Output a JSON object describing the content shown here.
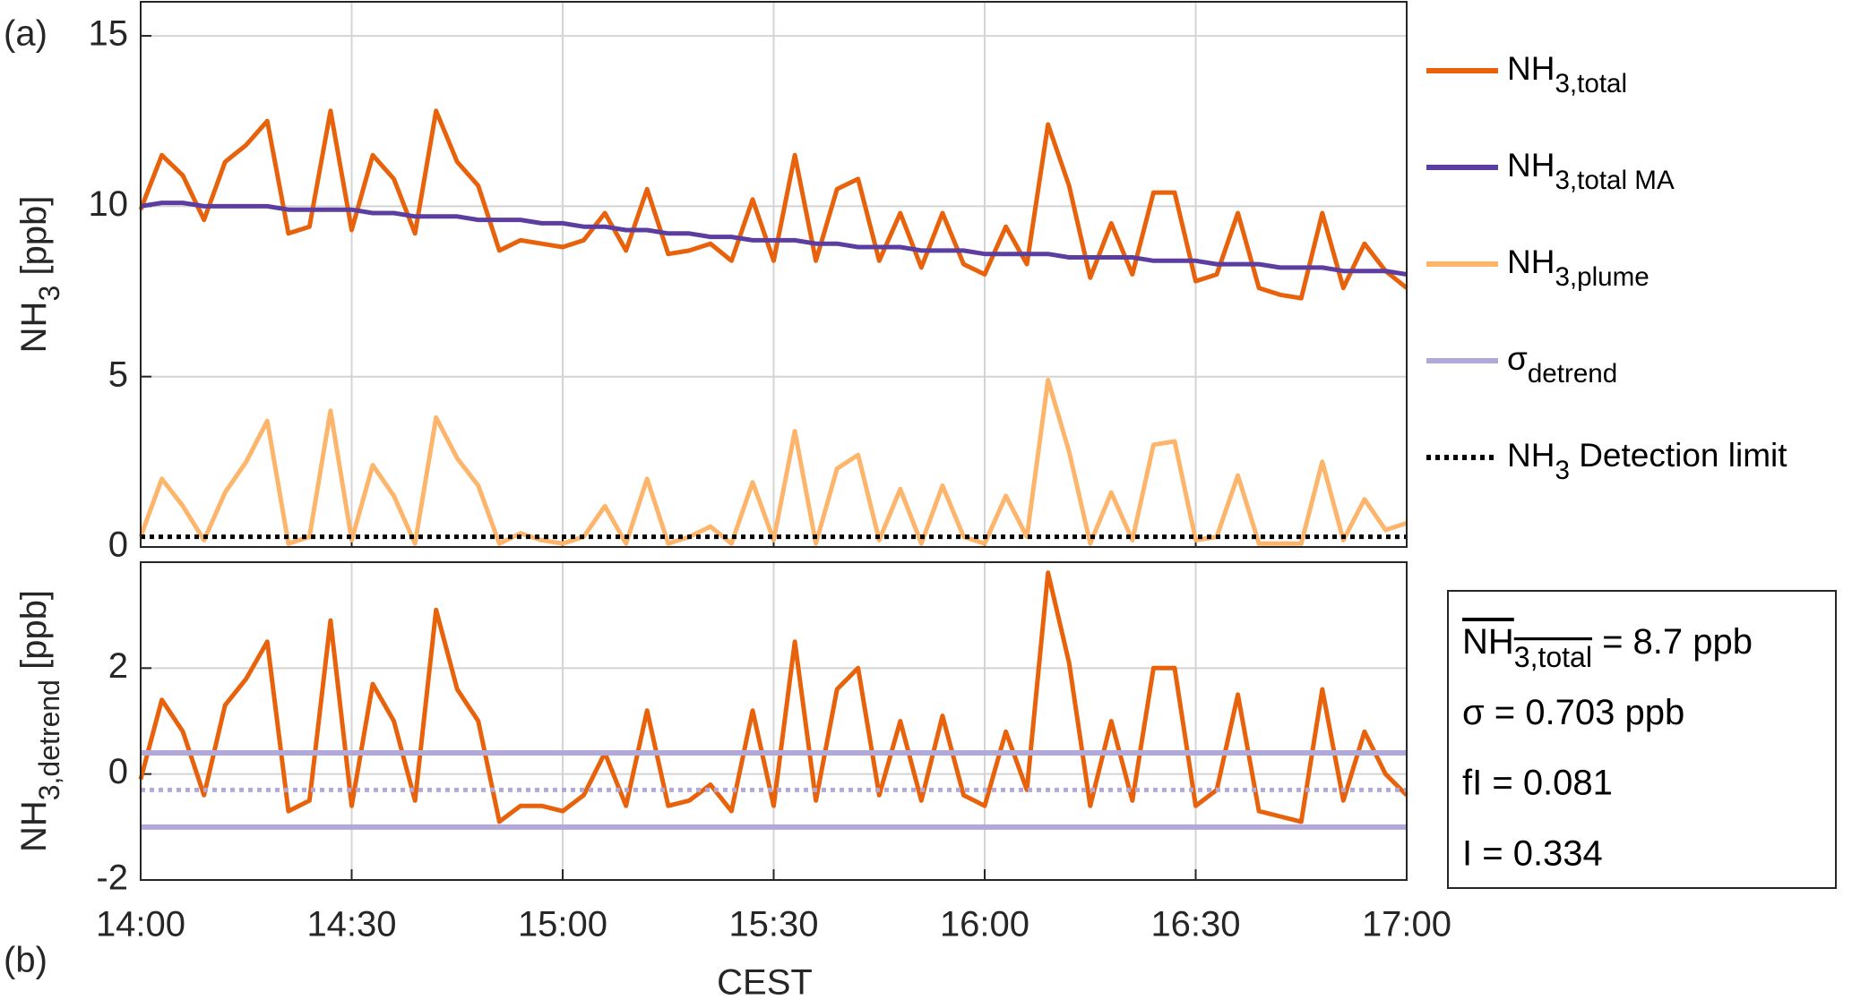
{
  "chart_data": [
    {
      "type": "line",
      "ylabel": "NH3 [ppb]",
      "panel_label": "(a)",
      "x": [
        "14:00",
        "14:03",
        "14:06",
        "14:09",
        "14:12",
        "14:15",
        "14:18",
        "14:21",
        "14:24",
        "14:27",
        "14:30",
        "14:33",
        "14:36",
        "14:39",
        "14:42",
        "14:45",
        "14:48",
        "14:51",
        "14:54",
        "14:57",
        "15:00",
        "15:03",
        "15:06",
        "15:09",
        "15:12",
        "15:15",
        "15:18",
        "15:21",
        "15:24",
        "15:27",
        "15:30",
        "15:33",
        "15:36",
        "15:39",
        "15:42",
        "15:45",
        "15:48",
        "15:51",
        "15:54",
        "15:57",
        "16:00",
        "16:03",
        "16:06",
        "16:09",
        "16:12",
        "16:15",
        "16:18",
        "16:21",
        "16:24",
        "16:27",
        "16:30",
        "16:33",
        "16:36",
        "16:39",
        "16:42",
        "16:45",
        "16:48",
        "16:51",
        "16:54",
        "16:57",
        "17:00"
      ],
      "xlim": [
        "14:00",
        "17:00"
      ],
      "xticks": [
        "14:00",
        "14:30",
        "15:00",
        "15:30",
        "16:00",
        "16:30",
        "17:00"
      ],
      "ylim": [
        0,
        16
      ],
      "yticks": [
        0,
        5,
        10,
        15
      ],
      "grid": true,
      "series": [
        {
          "name": "NH3,total",
          "color": "#e8620c",
          "values": [
            9.9,
            11.5,
            10.9,
            9.6,
            11.3,
            11.8,
            12.5,
            9.2,
            9.4,
            12.8,
            9.3,
            11.5,
            10.8,
            9.2,
            12.8,
            11.3,
            10.6,
            8.7,
            9.0,
            8.9,
            8.8,
            9.0,
            9.8,
            8.7,
            10.5,
            8.6,
            8.7,
            8.9,
            8.4,
            10.2,
            8.4,
            11.5,
            8.4,
            10.5,
            10.8,
            8.4,
            9.8,
            8.2,
            9.8,
            8.3,
            8.0,
            9.4,
            8.3,
            12.4,
            10.6,
            7.9,
            9.5,
            8.0,
            10.4,
            10.4,
            7.8,
            8.0,
            9.8,
            7.6,
            7.4,
            7.3,
            9.8,
            7.6,
            8.9,
            8.1,
            7.6
          ]
        },
        {
          "name": "NH3,total MA",
          "color": "#5b3ea0",
          "values": [
            10.0,
            10.1,
            10.1,
            10.0,
            10.0,
            10.0,
            10.0,
            9.9,
            9.9,
            9.9,
            9.9,
            9.8,
            9.8,
            9.7,
            9.7,
            9.7,
            9.6,
            9.6,
            9.6,
            9.5,
            9.5,
            9.4,
            9.4,
            9.3,
            9.3,
            9.2,
            9.2,
            9.1,
            9.1,
            9.0,
            9.0,
            9.0,
            8.9,
            8.9,
            8.8,
            8.8,
            8.8,
            8.7,
            8.7,
            8.7,
            8.6,
            8.6,
            8.6,
            8.6,
            8.5,
            8.5,
            8.5,
            8.5,
            8.4,
            8.4,
            8.4,
            8.3,
            8.3,
            8.3,
            8.2,
            8.2,
            8.2,
            8.1,
            8.1,
            8.1,
            8.0
          ]
        },
        {
          "name": "NH3,plume",
          "color": "#fdb56b",
          "values": [
            0.3,
            2.0,
            1.2,
            0.2,
            1.6,
            2.5,
            3.7,
            0.1,
            0.3,
            4.0,
            0.2,
            2.4,
            1.5,
            0.1,
            3.8,
            2.6,
            1.8,
            0.1,
            0.4,
            0.2,
            0.1,
            0.3,
            1.2,
            0.1,
            2.0,
            0.1,
            0.3,
            0.6,
            0.1,
            1.9,
            0.2,
            3.4,
            0.1,
            2.3,
            2.7,
            0.2,
            1.7,
            0.1,
            1.8,
            0.3,
            0.1,
            1.5,
            0.3,
            4.9,
            2.8,
            0.1,
            1.6,
            0.2,
            3.0,
            3.1,
            0.2,
            0.3,
            2.1,
            0.1,
            0.1,
            0.1,
            2.5,
            0.2,
            1.4,
            0.5,
            0.7
          ]
        }
      ],
      "hlines": [
        {
          "name": "NH3 Detection limit",
          "value": 0.3,
          "color": "#000000",
          "style": "dotted"
        }
      ]
    },
    {
      "type": "line",
      "ylabel": "NH3,detrend [ppb]",
      "xlabel": "CEST",
      "panel_label": "(b)",
      "x": [
        "14:00",
        "14:03",
        "14:06",
        "14:09",
        "14:12",
        "14:15",
        "14:18",
        "14:21",
        "14:24",
        "14:27",
        "14:30",
        "14:33",
        "14:36",
        "14:39",
        "14:42",
        "14:45",
        "14:48",
        "14:51",
        "14:54",
        "14:57",
        "15:00",
        "15:03",
        "15:06",
        "15:09",
        "15:12",
        "15:15",
        "15:18",
        "15:21",
        "15:24",
        "15:27",
        "15:30",
        "15:33",
        "15:36",
        "15:39",
        "15:42",
        "15:45",
        "15:48",
        "15:51",
        "15:54",
        "15:57",
        "16:00",
        "16:03",
        "16:06",
        "16:09",
        "16:12",
        "16:15",
        "16:18",
        "16:21",
        "16:24",
        "16:27",
        "16:30",
        "16:33",
        "16:36",
        "16:39",
        "16:42",
        "16:45",
        "16:48",
        "16:51",
        "16:54",
        "16:57",
        "17:00"
      ],
      "xlim": [
        "14:00",
        "17:00"
      ],
      "xticks": [
        "14:00",
        "14:30",
        "15:00",
        "15:30",
        "16:00",
        "16:30",
        "17:00"
      ],
      "ylim": [
        -2,
        4
      ],
      "yticks": [
        -2,
        0,
        2
      ],
      "grid": true,
      "series": [
        {
          "color": "#e8620c",
          "values": [
            -0.1,
            1.4,
            0.8,
            -0.4,
            1.3,
            1.8,
            2.5,
            -0.7,
            -0.5,
            2.9,
            -0.6,
            1.7,
            1.0,
            -0.5,
            3.1,
            1.6,
            1.0,
            -0.9,
            -0.6,
            -0.6,
            -0.7,
            -0.4,
            0.4,
            -0.6,
            1.2,
            -0.6,
            -0.5,
            -0.2,
            -0.7,
            1.2,
            -0.6,
            2.5,
            -0.5,
            1.6,
            2.0,
            -0.4,
            1.0,
            -0.5,
            1.1,
            -0.4,
            -0.6,
            0.8,
            -0.3,
            3.8,
            2.1,
            -0.6,
            1.0,
            -0.5,
            2.0,
            2.0,
            -0.6,
            -0.3,
            1.5,
            -0.7,
            -0.8,
            -0.9,
            1.6,
            -0.5,
            0.8,
            0.0,
            -0.4
          ]
        }
      ],
      "hlines": [
        {
          "name": "σdetrend",
          "value": 0.4,
          "color": "#b3a9d9",
          "style": "solid"
        },
        {
          "value": -1.0,
          "color": "#b3a9d9",
          "style": "solid"
        },
        {
          "value": -0.3,
          "color": "#b3a9d9",
          "style": "dotted"
        }
      ],
      "annotations": [
        "NH3,total = 8.7 ppb",
        "σ = 0.703 ppb",
        "fI = 0.081",
        "I = 0.334"
      ]
    }
  ]
}
